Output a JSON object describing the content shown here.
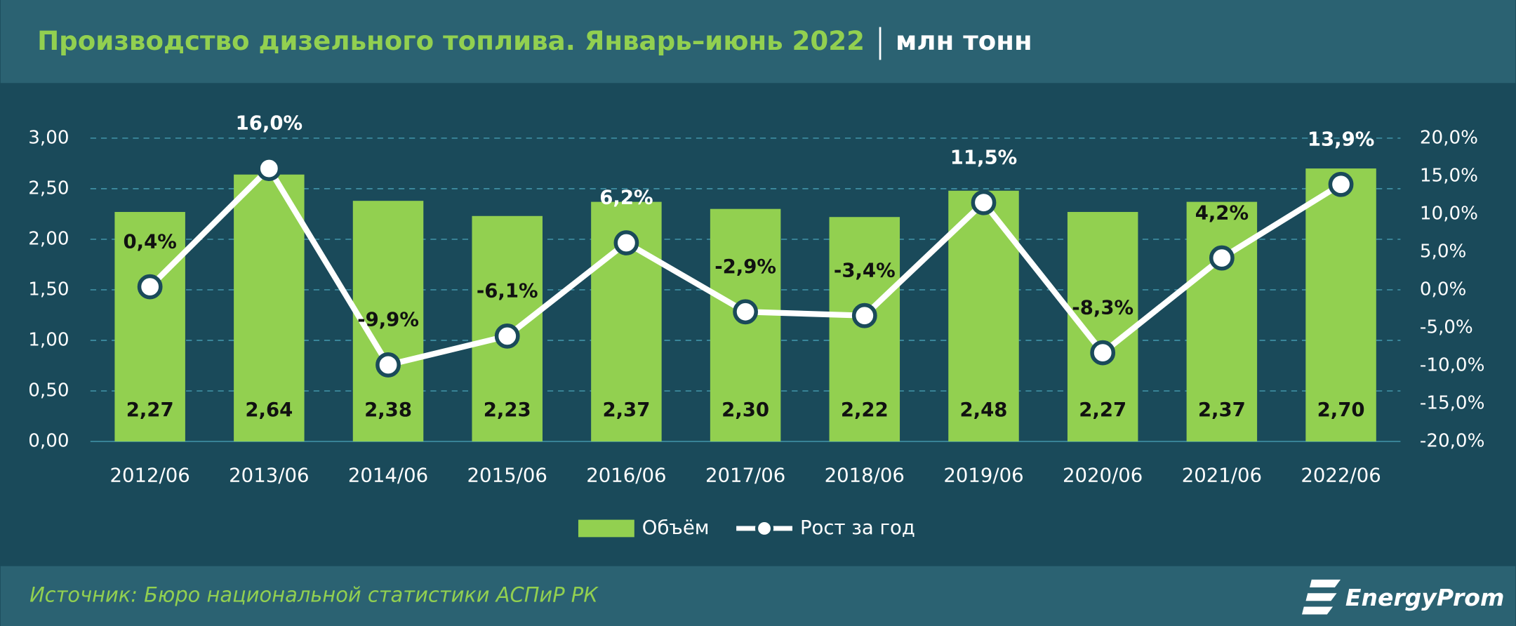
{
  "chart_data": {
    "type": "bar-line",
    "title": "Производство дизельного топлива. Январь–июнь 2022",
    "unit": "млн тонн",
    "source": "Источник: Бюро национальной статистики АСПиР РК",
    "brand": "EnergyProm",
    "categories": [
      "2012/06",
      "2013/06",
      "2014/06",
      "2015/06",
      "2016/06",
      "2017/06",
      "2018/06",
      "2019/06",
      "2020/06",
      "2021/06",
      "2022/06"
    ],
    "series": [
      {
        "name": "Объём",
        "type": "bar",
        "color": "#92d050",
        "values": [
          2.27,
          2.64,
          2.38,
          2.23,
          2.37,
          2.3,
          2.22,
          2.48,
          2.27,
          2.37,
          2.7
        ],
        "value_labels": [
          "2,27",
          "2,64",
          "2,38",
          "2,23",
          "2,37",
          "2,30",
          "2,22",
          "2,48",
          "2,27",
          "2,37",
          "2,70"
        ]
      },
      {
        "name": "Рост за год",
        "type": "line",
        "axis": "y2",
        "color": "#ffffff",
        "values": [
          0.4,
          16.0,
          -9.9,
          -6.1,
          6.2,
          -2.9,
          -3.4,
          11.5,
          -8.3,
          4.2,
          13.9
        ],
        "value_labels": [
          "0,4%",
          "16,0%",
          "-9,9%",
          "-6,1%",
          "6,2%",
          "-2,9%",
          "-3,4%",
          "11,5%",
          "-8,3%",
          "4,2%",
          "13,9%"
        ]
      }
    ],
    "ylim": [
      0,
      3
    ],
    "yticks": [
      {
        "value": 0,
        "label": "0,00"
      },
      {
        "value": 0.5,
        "label": "0,50"
      },
      {
        "value": 1,
        "label": "1,00"
      },
      {
        "value": 1.5,
        "label": "1,50"
      },
      {
        "value": 2,
        "label": "2,00"
      },
      {
        "value": 2.5,
        "label": "2,50"
      },
      {
        "value": 3,
        "label": "3,00"
      }
    ],
    "y2lim": [
      -20,
      20
    ],
    "y2ticks": [
      {
        "value": -20,
        "label": "-20,0%"
      },
      {
        "value": -15,
        "label": "-15,0%"
      },
      {
        "value": -10,
        "label": "-10,0%"
      },
      {
        "value": -5,
        "label": "-5,0%"
      },
      {
        "value": 0,
        "label": "0,0%"
      },
      {
        "value": 5,
        "label": "5,0%"
      },
      {
        "value": 10,
        "label": "10,0%"
      },
      {
        "value": 15,
        "label": "15,0%"
      },
      {
        "value": 20,
        "label": "20,0%"
      }
    ],
    "grid": true,
    "legend": "bottom"
  }
}
